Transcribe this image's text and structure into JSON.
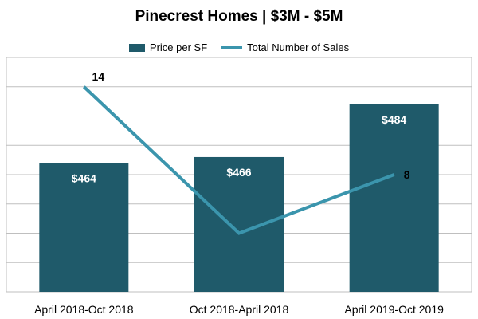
{
  "chart_data": {
    "type": "bar",
    "title": "Pinecrest Homes | $3M - $5M",
    "categories": [
      "April 2018-Oct 2018",
      "Oct 2018-April 2018",
      "April 2019-Oct 2019"
    ],
    "series": [
      {
        "name": "Price per SF",
        "type": "bar",
        "values": [
          464,
          466,
          484
        ],
        "labels": [
          "$464",
          "$466",
          "$484"
        ],
        "color": "#1f5a6a"
      },
      {
        "name": "Total Number of Sales",
        "type": "line",
        "values": [
          14,
          4,
          8
        ],
        "labels": [
          "14",
          "",
          "8"
        ],
        "color": "#3b95ad"
      }
    ],
    "grid": true,
    "legend": "top-center"
  }
}
